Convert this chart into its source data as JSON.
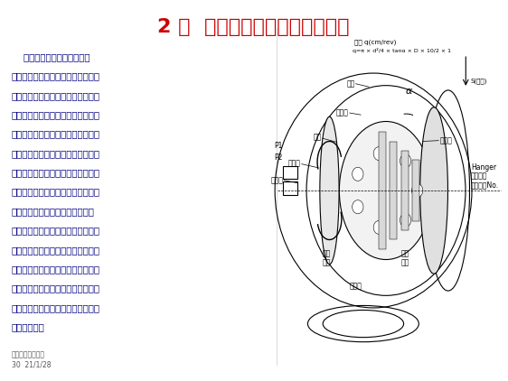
{
  "title": "2 ）  斜盤式軸向柱塞泵工作原理",
  "title_color": "#cc0000",
  "bg_color": "#ffffff",
  "text_color": "#000080",
  "body_text": [
    "    缸體與主軸上的花鍵相連接",
    "，從而與主軸一起旋轉。柱塞組件被",
    "安裝在與斜盤進行相互運動的缸體內",
    "部，柱塞從下死點移到上死點，并向",
    "出口流量增加的方向移動。液壓油通",
    "過吸油端口后，經由配流盤流向缸體",
    "（吸油過程），從上死點到下死點的",
    "行程中，柱塞始終向排油量減少的方",
    "向移動，于是液壓油經排油口排出",
    "（排油過程）。排油量隨著斜盤的傾",
    "角的變化而變化。通過缸體吸油口吸",
    "入的液壓油經配流盤的排油口排出，",
    "而通過缸體外（內）圈的吸油口吸入",
    "的液壓油則經配流盤的外（內）圈的",
    "排油口排出。"
  ],
  "footer_line1": "挖掘機服務管理室",
  "footer_line2": "30  21/1/28",
  "formula_line1": "排量 q(cm/rev)",
  "formula_line2": "q=π × d²/4 × tanα × D × 10/2 × 1"
}
